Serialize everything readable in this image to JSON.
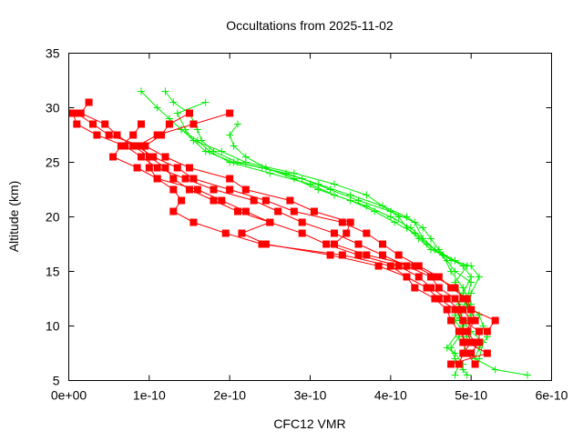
{
  "chart_data": {
    "type": "line",
    "title": "Occultations from 2025-11-02",
    "xlabel": "CFC12 VMR",
    "ylabel": "Altitude (km)",
    "xlim": [
      0,
      6e-10
    ],
    "ylim": [
      5,
      35
    ],
    "xticks": [
      0,
      1e-10,
      2e-10,
      3e-10,
      4e-10,
      5e-10,
      6e-10
    ],
    "xtick_labels": [
      "0e+00",
      "1e-10",
      "2e-10",
      "3e-10",
      "4e-10",
      "5e-10",
      "6e-10"
    ],
    "yticks": [
      5,
      10,
      15,
      20,
      25,
      30,
      35
    ],
    "ytick_labels": [
      "5",
      "10",
      "15",
      "20",
      "25",
      "30",
      "35"
    ],
    "grid": false,
    "colors": {
      "red": "#ff0000",
      "green": "#00ee00"
    },
    "series": [
      {
        "group": "red",
        "marker": "square",
        "x": [
          0.05,
          0.1,
          0.35,
          0.7,
          0.9,
          1.1,
          1.45,
          1.8,
          2.3,
          2.6,
          2.9,
          3.3,
          3.6,
          3.9,
          4.2,
          4.5,
          4.6,
          4.8,
          4.9,
          5.0,
          4.95,
          5.0,
          4.9,
          4.85
        ],
        "y": [
          29.5,
          28.5,
          27.5,
          26.5,
          25.5,
          24.5,
          23.5,
          22.5,
          21.5,
          20.5,
          19.5,
          18.5,
          17.5,
          16.5,
          15.5,
          14.5,
          13.5,
          12.5,
          11.5,
          10.5,
          9.5,
          8.5,
          7.5,
          6.5
        ],
        "x_scale": 1e-10
      },
      {
        "group": "red",
        "marker": "square",
        "x": [
          0.1,
          0.3,
          0.5,
          0.9,
          1.0,
          1.2,
          1.3,
          1.5,
          1.8,
          2.1,
          2.5,
          2.9,
          3.2,
          3.6,
          4.1,
          4.35,
          4.5,
          4.7,
          4.85,
          4.9,
          5.1,
          5.1,
          5.0
        ],
        "y": [
          29.5,
          28.5,
          27.5,
          26.5,
          25.5,
          24.5,
          23.5,
          22.5,
          21.5,
          20.5,
          19.5,
          18.5,
          17.5,
          16.5,
          15.5,
          14.5,
          13.5,
          12.5,
          11.5,
          10.5,
          9.5,
          8.5,
          7.5
        ],
        "x_scale": 1e-10
      },
      {
        "group": "red",
        "marker": "square",
        "x": [
          0.25,
          0.15,
          0.45,
          0.6,
          0.8,
          1.0,
          1.0,
          1.1,
          1.3,
          1.4,
          1.3,
          1.55,
          1.95,
          2.4,
          3.4,
          4.0,
          4.2,
          4.3,
          4.55,
          4.7,
          4.75,
          4.85,
          4.95,
          5.2,
          4.75
        ],
        "y": [
          30.5,
          29.5,
          28.5,
          27.5,
          26.5,
          25.5,
          24.5,
          23.5,
          22.5,
          21.5,
          20.5,
          19.5,
          18.5,
          17.5,
          16.5,
          15.5,
          14.5,
          13.5,
          12.5,
          11.5,
          10.5,
          9.5,
          8.5,
          7.5,
          6.5
        ],
        "x_scale": 1e-10
      },
      {
        "group": "red",
        "marker": "square",
        "x": [
          2.0,
          1.55,
          1.1,
          0.85,
          1.05,
          1.35,
          1.55,
          2.0,
          2.45,
          2.8,
          3.4,
          3.7,
          3.9,
          4.1,
          4.35,
          4.6,
          4.75,
          4.95,
          5.0,
          5.3,
          5.2
        ],
        "y": [
          29.5,
          28.5,
          27.5,
          26.5,
          25.5,
          24.5,
          23.5,
          22.5,
          21.5,
          20.5,
          19.5,
          18.5,
          17.5,
          16.5,
          15.5,
          14.5,
          13.5,
          12.5,
          11.5,
          10.5,
          9.5
        ],
        "x_scale": 1e-10
      },
      {
        "group": "red",
        "marker": "square",
        "x": [
          1.5,
          1.25,
          1.15,
          0.95,
          1.2,
          1.5,
          2.0,
          2.2,
          2.75,
          3.05,
          3.5,
          3.45,
          3.3,
          3.7,
          4.3,
          4.55,
          4.8,
          4.9,
          5.0,
          5.05,
          4.95,
          5.05
        ],
        "y": [
          29.5,
          28.5,
          27.5,
          26.5,
          25.5,
          24.5,
          23.5,
          22.5,
          21.5,
          20.5,
          19.5,
          18.5,
          17.5,
          16.5,
          15.5,
          14.5,
          13.5,
          12.5,
          11.5,
          10.5,
          9.5,
          8.5
        ],
        "x_scale": 1e-10
      },
      {
        "group": "red",
        "marker": "square",
        "x": [
          0.9,
          0.8,
          0.65,
          0.55,
          0.85,
          1.1,
          1.6,
          1.9,
          2.2,
          2.5,
          2.15,
          2.45,
          3.25,
          3.85,
          4.2,
          4.45,
          4.6,
          4.8,
          4.9,
          4.9,
          4.9,
          4.95,
          5.05
        ],
        "y": [
          28.5,
          27.5,
          26.5,
          25.5,
          24.5,
          23.5,
          22.5,
          21.5,
          20.5,
          19.5,
          18.5,
          17.5,
          16.5,
          15.5,
          14.5,
          13.5,
          12.5,
          11.5,
          10.5,
          9.5,
          8.5,
          7.5,
          6.5
        ],
        "x_scale": 1e-10
      },
      {
        "group": "green",
        "marker": "cross",
        "x": [
          0.9,
          1.1,
          1.25,
          1.4,
          1.55,
          1.9,
          2.2,
          2.8,
          3.3,
          3.7,
          3.9,
          4.1,
          4.2,
          4.35,
          4.5,
          4.65,
          4.9,
          5.0,
          4.9,
          4.85,
          4.8,
          4.9,
          4.85,
          4.75,
          4.8,
          4.9,
          4.95
        ],
        "y": [
          31.5,
          30,
          29,
          28,
          27,
          26,
          25,
          24,
          23,
          22,
          21,
          20,
          19,
          18,
          17,
          16.5,
          15.5,
          14.5,
          13,
          12,
          11,
          10,
          9,
          8,
          7,
          6,
          5.5
        ],
        "x_scale": 1e-10
      },
      {
        "group": "green",
        "marker": "cross",
        "x": [
          1.2,
          1.3,
          1.5,
          1.6,
          1.65,
          1.8,
          2.1,
          2.7,
          3.1,
          3.5,
          3.9,
          4.2,
          4.4,
          4.5,
          4.6,
          4.75,
          5.0,
          5.1,
          5.0,
          4.95,
          5.1,
          5.15,
          5.2,
          5.1,
          5.05,
          5.3,
          5.7
        ],
        "y": [
          31.5,
          30.5,
          29.5,
          28,
          27,
          26,
          25,
          24,
          23,
          22,
          21,
          20,
          19,
          18,
          17,
          16,
          15.5,
          14.5,
          13,
          12,
          11,
          10,
          9,
          8,
          7,
          6,
          5.5
        ],
        "x_scale": 1e-10
      },
      {
        "group": "green",
        "marker": "cross",
        "x": [
          1.7,
          1.35,
          1.45,
          1.55,
          1.7,
          2.05,
          2.4,
          2.9,
          3.25,
          3.6,
          4.0,
          4.3,
          4.4,
          4.55,
          4.8,
          4.95,
          4.8,
          4.9,
          5.0,
          4.85,
          4.7,
          4.8,
          4.9
        ],
        "y": [
          30.5,
          29.5,
          28,
          27,
          26,
          25,
          24.5,
          23.5,
          22.5,
          21.5,
          20.5,
          19.5,
          18,
          17,
          16,
          15.5,
          14,
          12.5,
          11,
          9.5,
          8,
          7.5,
          6.5
        ],
        "x_scale": 1e-10
      },
      {
        "group": "green",
        "marker": "cross",
        "x": [
          2.1,
          2.0,
          2.05,
          2.2,
          2.45,
          2.8,
          3.1,
          3.5,
          3.8,
          4.05,
          4.3,
          4.45,
          4.65,
          4.75,
          4.9,
          5.0,
          4.8,
          4.95,
          4.9,
          4.8
        ],
        "y": [
          28.5,
          27.5,
          26.5,
          25.5,
          24.5,
          23.5,
          22.5,
          21.5,
          20.5,
          19.5,
          18.5,
          17.5,
          16.5,
          15,
          13.5,
          12,
          10.5,
          9,
          7.5,
          5.5
        ],
        "x_scale": 1e-10
      },
      {
        "group": "green",
        "marker": "cross",
        "x": [
          1.4,
          1.6,
          1.75,
          2.0,
          2.5,
          3.0,
          3.3,
          3.7,
          4.0,
          4.25,
          4.4,
          4.55,
          4.7,
          4.8,
          5.0,
          4.95,
          4.85,
          5.0,
          5.15,
          5.1
        ],
        "y": [
          28,
          27,
          26,
          25,
          24,
          23,
          22,
          21,
          20,
          19,
          18,
          17,
          16,
          15,
          14,
          12.5,
          11,
          9.5,
          8.5,
          7
        ],
        "x_scale": 1e-10
      }
    ]
  }
}
